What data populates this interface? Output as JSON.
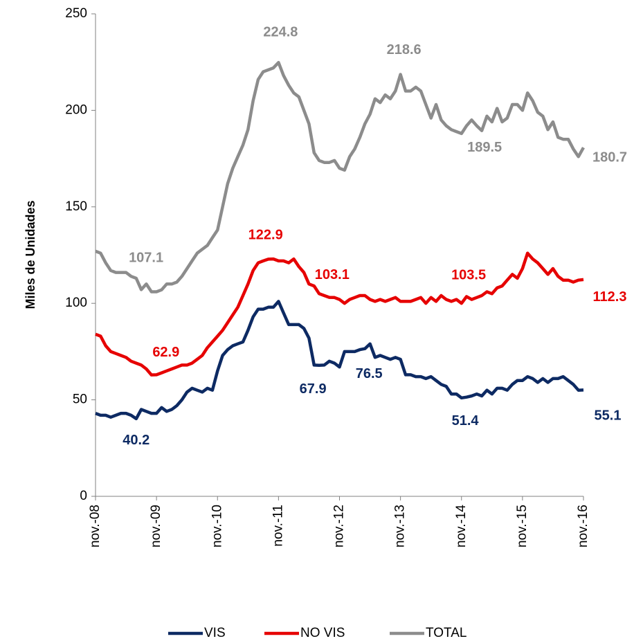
{
  "chart_data": {
    "type": "line",
    "ylabel": "Miles de Unidades",
    "categories": [
      "nov.-08",
      null,
      null,
      null,
      null,
      null,
      null,
      null,
      null,
      null,
      null,
      null,
      "nov.-09",
      null,
      null,
      null,
      null,
      null,
      null,
      null,
      null,
      null,
      null,
      null,
      "nov.-10",
      null,
      null,
      null,
      null,
      null,
      null,
      null,
      null,
      null,
      null,
      null,
      "nov.-11",
      null,
      null,
      null,
      null,
      null,
      null,
      null,
      null,
      null,
      null,
      null,
      "nov.-12",
      null,
      null,
      null,
      null,
      null,
      null,
      null,
      null,
      null,
      null,
      null,
      "nov.-13",
      null,
      null,
      null,
      null,
      null,
      null,
      null,
      null,
      null,
      null,
      null,
      "nov.-14",
      null,
      null,
      null,
      null,
      null,
      null,
      null,
      null,
      null,
      null,
      null,
      "nov.-15",
      null,
      null,
      null,
      null,
      null,
      null,
      null,
      null,
      null,
      null,
      null,
      "nov.-16"
    ],
    "ylim": [
      0,
      250
    ],
    "yticks": [
      0,
      50,
      100,
      150,
      200,
      250
    ],
    "grid": false,
    "legend": "bottom",
    "series": [
      {
        "name": "VIS",
        "color": "#0d2a63",
        "values": [
          43,
          42,
          42,
          41,
          42,
          43,
          43,
          42,
          40.2,
          45,
          44,
          43,
          43,
          46,
          44,
          45,
          47,
          50,
          54,
          56,
          55,
          54,
          56,
          55,
          65,
          73,
          76,
          78,
          79,
          80,
          86,
          93,
          97,
          97,
          98,
          98,
          101,
          95,
          89,
          89,
          89,
          87,
          82,
          68,
          67.9,
          68,
          70,
          69,
          67,
          75,
          75,
          75,
          76,
          76.5,
          79,
          72,
          73,
          72,
          71,
          72,
          71,
          63,
          63,
          62,
          62,
          61,
          62,
          60,
          58,
          57,
          53,
          53,
          51,
          51.4,
          52,
          53,
          52,
          55,
          53,
          56,
          56,
          55,
          58,
          60,
          60,
          62,
          61,
          59,
          61,
          59,
          61,
          61,
          62,
          60,
          58,
          55,
          55.1
        ],
        "value_labels": [
          null,
          null,
          null,
          null,
          null,
          null,
          null,
          null,
          "40.2",
          null,
          null,
          null,
          null,
          null,
          null,
          null,
          null,
          null,
          null,
          null,
          null,
          null,
          null,
          null,
          null,
          null,
          null,
          null,
          null,
          null,
          null,
          null,
          null,
          null,
          null,
          null,
          null,
          null,
          null,
          null,
          null,
          null,
          null,
          null,
          "67.9",
          null,
          null,
          null,
          null,
          null,
          null,
          null,
          null,
          "76.5",
          null,
          null,
          null,
          null,
          null,
          null,
          null,
          null,
          null,
          null,
          null,
          null,
          null,
          null,
          null,
          null,
          null,
          null,
          null,
          "51.4",
          null,
          null,
          null,
          null,
          null,
          null,
          null,
          null,
          null,
          null,
          null,
          null,
          null,
          null,
          null,
          null,
          null,
          null,
          null,
          null,
          null,
          null,
          "55.1"
        ]
      },
      {
        "name": "NO VIS",
        "color": "#e60000",
        "values": [
          84,
          83,
          78,
          75,
          74,
          73,
          72,
          70,
          69,
          68,
          66,
          62.9,
          63,
          64,
          65,
          66,
          67,
          68,
          68,
          69,
          71,
          73,
          77,
          80,
          83,
          86,
          90,
          94,
          98,
          104,
          110,
          117,
          121,
          122,
          122.9,
          123,
          122,
          122,
          121,
          123,
          119,
          116,
          110,
          109,
          105,
          104,
          103.1,
          103,
          102,
          100,
          102,
          103,
          104,
          104,
          102,
          101,
          102,
          101,
          102,
          103,
          101,
          101,
          101,
          102,
          103,
          100,
          103,
          101,
          104,
          102,
          101,
          102,
          100,
          103.5,
          102,
          103,
          104,
          106,
          105,
          108,
          109,
          112,
          115,
          113,
          118,
          126,
          123,
          121,
          118,
          115,
          118,
          114,
          112,
          112,
          111,
          112,
          112.3
        ],
        "value_labels": [
          null,
          null,
          null,
          null,
          null,
          null,
          null,
          null,
          null,
          null,
          null,
          "62.9",
          null,
          null,
          null,
          null,
          null,
          null,
          null,
          null,
          null,
          null,
          null,
          null,
          null,
          null,
          null,
          null,
          null,
          null,
          null,
          null,
          null,
          null,
          "122.9",
          null,
          null,
          null,
          null,
          null,
          null,
          null,
          null,
          null,
          null,
          null,
          "103.1",
          null,
          null,
          null,
          null,
          null,
          null,
          null,
          null,
          null,
          null,
          null,
          null,
          null,
          null,
          null,
          null,
          null,
          null,
          null,
          null,
          null,
          null,
          null,
          null,
          null,
          null,
          "103.5",
          null,
          null,
          null,
          null,
          null,
          null,
          null,
          null,
          null,
          null,
          null,
          null,
          null,
          null,
          null,
          null,
          null,
          null,
          null,
          null,
          null,
          null,
          "112.3"
        ]
      },
      {
        "name": "TOTAL",
        "color": "#8c8c8c",
        "values": [
          127,
          126,
          121,
          117,
          116,
          116,
          116,
          114,
          113,
          107.1,
          110,
          106,
          106,
          107,
          110,
          110,
          111,
          114,
          118,
          122,
          126,
          128,
          130,
          134,
          138,
          150,
          162,
          170,
          176,
          182,
          190,
          205,
          216,
          220,
          221,
          222,
          224.8,
          218,
          213,
          209,
          207,
          200,
          193,
          178,
          174,
          173,
          173,
          174,
          170,
          169,
          176,
          180,
          186,
          193,
          198,
          206,
          204,
          208,
          206,
          210,
          218.6,
          210,
          210,
          212,
          210,
          203,
          196,
          203,
          195,
          192,
          190,
          189,
          188,
          192,
          195,
          192,
          189.5,
          197,
          194,
          201,
          194,
          196,
          203,
          203,
          200,
          209,
          205,
          199,
          197,
          190,
          194,
          186,
          185,
          185,
          180,
          176,
          180.7
        ],
        "value_labels": [
          null,
          null,
          null,
          null,
          null,
          null,
          null,
          null,
          null,
          "107.1",
          null,
          null,
          null,
          null,
          null,
          null,
          null,
          null,
          null,
          null,
          null,
          null,
          null,
          null,
          null,
          null,
          null,
          null,
          null,
          null,
          null,
          null,
          null,
          null,
          null,
          null,
          "224.8",
          null,
          null,
          null,
          null,
          null,
          null,
          null,
          null,
          null,
          null,
          null,
          null,
          null,
          null,
          null,
          null,
          null,
          null,
          null,
          null,
          null,
          null,
          null,
          "218.6",
          null,
          null,
          null,
          null,
          null,
          null,
          null,
          null,
          null,
          null,
          null,
          null,
          null,
          null,
          null,
          "189.5",
          null,
          null,
          null,
          null,
          null,
          null,
          null,
          null,
          null,
          null,
          null,
          null,
          null,
          null,
          null,
          null,
          null,
          null,
          null,
          "180.7"
        ]
      }
    ]
  }
}
